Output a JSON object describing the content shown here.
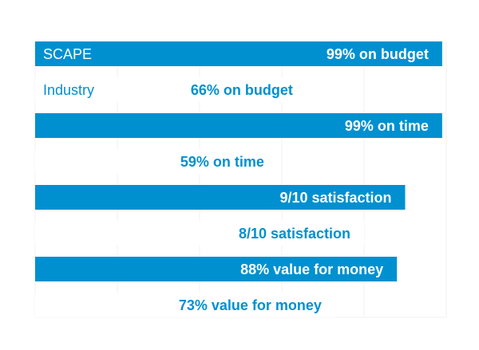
{
  "chart_data": {
    "type": "bar",
    "orientation": "horizontal",
    "series": [
      {
        "name": "SCAPE",
        "color": "#0090D0",
        "bars": [
          {
            "label": "99% on budget",
            "value": 99
          },
          {
            "label": "99% on time",
            "value": 99
          },
          {
            "label": "9/10 satisfaction",
            "value": 90
          },
          {
            "label": "88% value for money",
            "value": 88
          }
        ]
      },
      {
        "name": "Industry",
        "color": "#ffffff",
        "label_color": "#0090D0",
        "bars": [
          {
            "label": "66% on budget",
            "value": 66
          },
          {
            "label": "59% on time",
            "value": 59
          },
          {
            "label": "8/10 satisfaction",
            "value": 80
          },
          {
            "label": "73% value for money",
            "value": 73
          }
        ]
      }
    ],
    "xlim": [
      0,
      100
    ],
    "grid": "vertical-faint",
    "legend": "inline-in-bars"
  }
}
